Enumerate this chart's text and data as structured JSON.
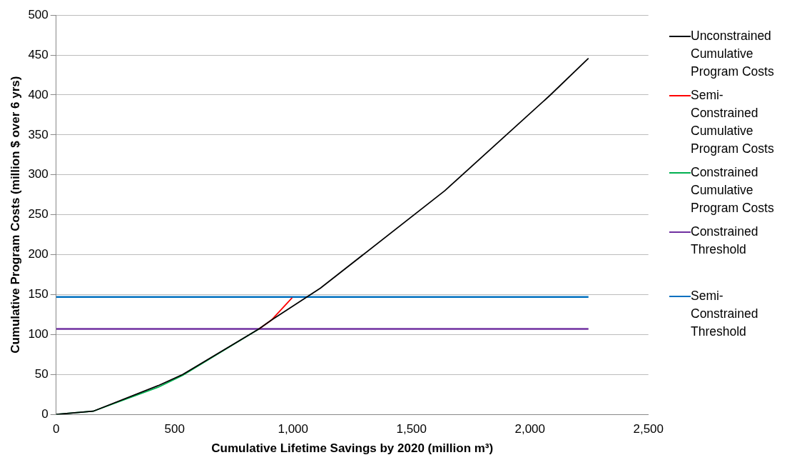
{
  "chart_data": {
    "type": "line",
    "xlabel": "Cumulative Lifetime Savings by 2020 (million m³)",
    "ylabel": "Cumulative Program Costs (million $ over 6 yrs)",
    "xlim": [
      0,
      2500
    ],
    "xticks": [
      {
        "value": 0,
        "label": "0"
      },
      {
        "value": 500,
        "label": "500"
      },
      {
        "value": 1000,
        "label": "1,000"
      },
      {
        "value": 1500,
        "label": "1,500"
      },
      {
        "value": 2000,
        "label": "2,000"
      },
      {
        "value": 2500,
        "label": "2,500"
      }
    ],
    "ylim": [
      0,
      500
    ],
    "yticks": [
      0,
      50,
      100,
      150,
      200,
      250,
      300,
      350,
      400,
      450,
      500
    ],
    "grid": "y",
    "legend": "right",
    "marker": "none",
    "line_style": "solid",
    "series": [
      {
        "name": "Unconstrained Cumulative Program Costs",
        "color": "#000000",
        "x": [
          0,
          156,
          430,
          534,
          856,
          908,
          1115,
          1640,
          2086,
          2247
        ],
        "values": [
          0,
          4,
          36,
          50,
          107,
          118,
          158,
          280,
          400,
          446
        ]
      },
      {
        "name": "Semi-Constrained Cumulative Program Costs",
        "color": "#ff0000",
        "x": [
          856,
          908,
          996
        ],
        "values": [
          107,
          118,
          146
        ]
      },
      {
        "name": "Constrained Cumulative Program Costs",
        "color": "#00b050",
        "x": [
          0,
          156,
          430,
          534,
          856
        ],
        "values": [
          0,
          4,
          34,
          49,
          107
        ]
      },
      {
        "name": "Constrained Threshold",
        "color": "#7030a0",
        "x": [
          0,
          2247
        ],
        "values": [
          107,
          107
        ]
      },
      {
        "name": "Semi-Constrained Threshold",
        "color": "#0070c0",
        "x": [
          0,
          2247
        ],
        "values": [
          147,
          147
        ]
      }
    ]
  }
}
